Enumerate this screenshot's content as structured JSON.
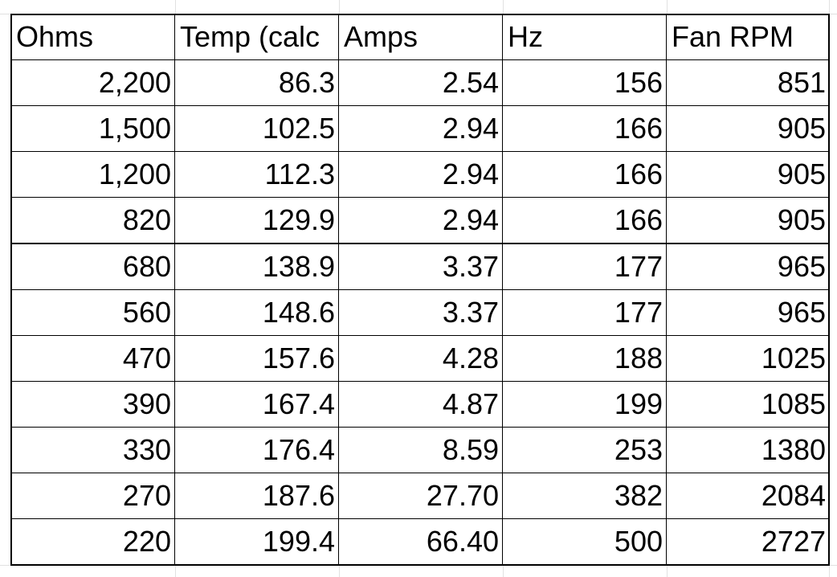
{
  "table": {
    "header": [
      "Ohms",
      "Temp (calc",
      "Amps",
      "Hz",
      "Fan RPM"
    ],
    "rows": [
      [
        "2,200",
        "86.3",
        "2.54",
        "156",
        "851"
      ],
      [
        "1,500",
        "102.5",
        "2.94",
        "166",
        "905"
      ],
      [
        "1,200",
        "112.3",
        "2.94",
        "166",
        "905"
      ],
      [
        "820",
        "129.9",
        "2.94",
        "166",
        "905"
      ],
      [
        "680",
        "138.9",
        "3.37",
        "177",
        "965"
      ],
      [
        "560",
        "148.6",
        "3.37",
        "177",
        "965"
      ],
      [
        "470",
        "157.6",
        "4.28",
        "188",
        "1025"
      ],
      [
        "390",
        "167.4",
        "4.87",
        "199",
        "1085"
      ],
      [
        "330",
        "176.4",
        "8.59",
        "253",
        "1380"
      ],
      [
        "270",
        "187.6",
        "27.70",
        "382",
        "2084"
      ],
      [
        "220",
        "199.4",
        "66.40",
        "500",
        "2727"
      ]
    ]
  }
}
